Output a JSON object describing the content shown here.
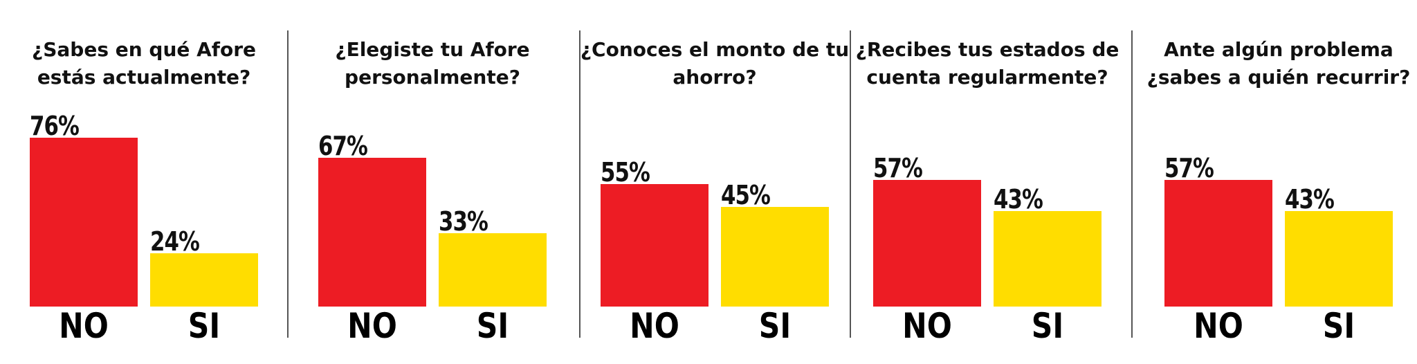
{
  "chart_data": [
    {
      "type": "bar",
      "title": "¿Sabes en qué Afore estás actualmente?",
      "categories": [
        "NO",
        "SI"
      ],
      "values": [
        76,
        24
      ],
      "labels": [
        "76%",
        "24%"
      ],
      "colors": [
        "#ed1c24",
        "#ffdd00"
      ],
      "ylim": [
        0,
        100
      ]
    },
    {
      "type": "bar",
      "title": "¿Elegiste tu Afore personalmente?",
      "categories": [
        "NO",
        "SI"
      ],
      "values": [
        67,
        33
      ],
      "labels": [
        "67%",
        "33%"
      ],
      "colors": [
        "#ed1c24",
        "#ffdd00"
      ],
      "ylim": [
        0,
        100
      ]
    },
    {
      "type": "bar",
      "title": "¿Conoces el monto de tu ahorro?",
      "categories": [
        "NO",
        "SI"
      ],
      "values": [
        55,
        45
      ],
      "labels": [
        "55%",
        "45%"
      ],
      "colors": [
        "#ed1c24",
        "#ffdd00"
      ],
      "ylim": [
        0,
        100
      ]
    },
    {
      "type": "bar",
      "title": "¿Recibes tus estados de cuenta regularmente?",
      "categories": [
        "NO",
        "SI"
      ],
      "values": [
        57,
        43
      ],
      "labels": [
        "57%",
        "43%"
      ],
      "colors": [
        "#ed1c24",
        "#ffdd00"
      ],
      "ylim": [
        0,
        100
      ]
    },
    {
      "type": "bar",
      "title": "Ante algún problema ¿sabes a quién recurrir?",
      "categories": [
        "NO",
        "SI"
      ],
      "values": [
        57,
        43
      ],
      "labels": [
        "57%",
        "43%"
      ],
      "colors": [
        "#ed1c24",
        "#ffdd00"
      ],
      "ylim": [
        0,
        100
      ]
    }
  ]
}
